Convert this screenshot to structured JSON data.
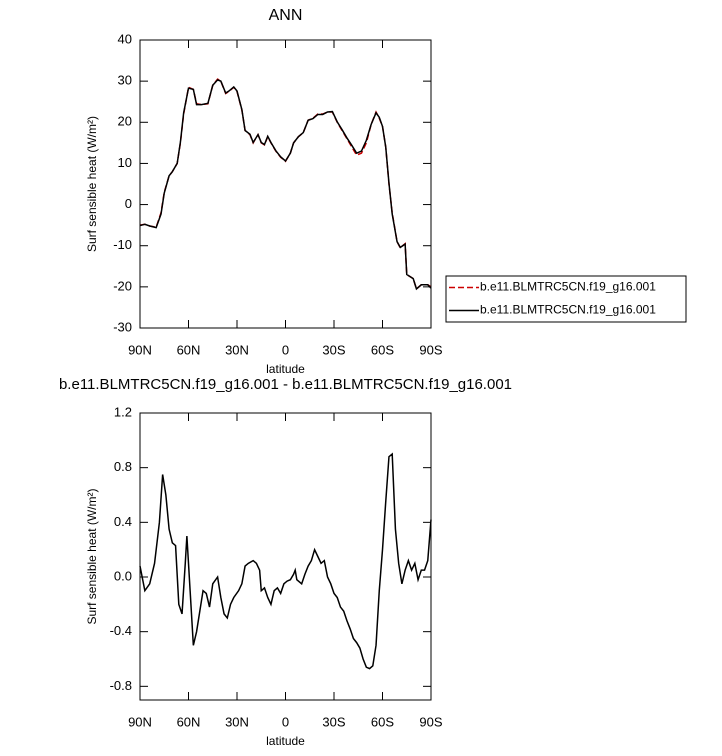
{
  "chart_data": [
    {
      "type": "line",
      "title": "ANN",
      "x_label": "latitude",
      "y_label": "Surf sensible heat (W/m²)",
      "x": [
        90,
        87,
        84,
        80,
        77,
        75,
        72,
        70,
        67,
        65,
        63,
        60,
        57,
        55,
        52,
        48,
        45,
        42,
        40,
        37,
        35,
        32,
        30,
        27,
        25,
        22,
        20,
        17,
        15,
        13,
        11,
        9,
        6,
        3,
        0,
        -3,
        -5,
        -8,
        -11,
        -14,
        -17,
        -20,
        -23,
        -26,
        -29,
        -32,
        -35,
        -38,
        -41,
        -44,
        -47,
        -50,
        -53,
        -56,
        -58,
        -60,
        -62,
        -64,
        -66,
        -69,
        -71,
        -74,
        -75,
        -79,
        -81,
        -84,
        -88,
        -90
      ],
      "series": [
        {
          "name": "b.e11.BLMTRC5CN.f19_g16.001",
          "color": "#cc0000",
          "line_style": "dashed",
          "values": [
            -5,
            -4.8,
            -5.2,
            -5.5,
            -2,
            3,
            7,
            8,
            10,
            15,
            22,
            28.5,
            28,
            24.5,
            24.3,
            24.5,
            29,
            30.5,
            30,
            27,
            27.5,
            28.5,
            27.5,
            23,
            18,
            17,
            15,
            17,
            15,
            14.5,
            16.5,
            15,
            13,
            11.5,
            10.5,
            12.5,
            15,
            16.5,
            17.5,
            20.5,
            21,
            22,
            22,
            22.5,
            22.5,
            20,
            18,
            16,
            14,
            12,
            12.5,
            15,
            19.5,
            22.5,
            21,
            19,
            14,
            5,
            -2,
            -9,
            -10.5,
            -9.5,
            -17,
            -18,
            -20.5,
            -19.5,
            -19.5,
            -20
          ]
        },
        {
          "name": "b.e11.BLMTRC5CN.f19_g16.001",
          "color": "#000000",
          "line_style": "solid",
          "values": [
            -5.1,
            -4.8,
            -5.2,
            -5.6,
            -2.3,
            2.8,
            7,
            8,
            10,
            15.2,
            22.3,
            28.3,
            28,
            24.3,
            24.3,
            24.6,
            29,
            30.3,
            30,
            27.1,
            27.6,
            28.6,
            27.6,
            23.1,
            18,
            17.1,
            15.1,
            17,
            15.1,
            14.6,
            16.6,
            15.1,
            13.1,
            11.6,
            10.6,
            12.5,
            15,
            16.5,
            17.5,
            20.5,
            20.9,
            21.9,
            21.9,
            22.5,
            22.6,
            20.1,
            18.2,
            16.2,
            14.4,
            12.5,
            13,
            15.6,
            19.5,
            22.3,
            21.2,
            19,
            14,
            5.2,
            -2.3,
            -9,
            -10.4,
            -9.6,
            -17,
            -18,
            -20.5,
            -19.5,
            -19.5,
            -20.3
          ]
        }
      ],
      "xlim": [
        90,
        -90
      ],
      "xticks": [
        {
          "value": 90,
          "label": "90N"
        },
        {
          "value": 60,
          "label": "60N"
        },
        {
          "value": 30,
          "label": "30N"
        },
        0,
        {
          "value": -30,
          "label": "30S"
        },
        {
          "value": -60,
          "label": "60S"
        },
        {
          "value": -90,
          "label": "90S"
        }
      ],
      "ylim": [
        -30,
        40
      ],
      "yticks": [
        -30,
        -20,
        -10,
        0,
        10,
        20,
        30,
        40
      ],
      "legend": "right"
    },
    {
      "type": "line",
      "title": "b.e11.BLMTRC5CN.f19_g16.001 - b.e11.BLMTRC5CN.f19_g16.001",
      "x_label": "latitude",
      "y_label": "Surf sensible heat (W/m²)",
      "x": [
        90,
        87,
        84,
        81,
        78,
        76,
        74,
        72,
        70,
        68,
        66,
        64,
        62,
        61,
        59,
        57,
        55,
        53,
        51,
        49,
        47,
        45,
        42,
        40,
        38,
        36,
        34,
        32,
        29,
        27,
        25,
        23,
        20,
        18,
        16,
        15,
        13,
        11,
        9,
        7,
        5,
        3,
        1,
        -1,
        -3,
        -5,
        -6,
        -7,
        -10,
        -12,
        -14,
        -16,
        -18,
        -20,
        -22,
        -24,
        -26,
        -28,
        -30,
        -32,
        -34,
        -36,
        -38,
        -40,
        -42,
        -44,
        -46,
        -48,
        -50,
        -52,
        -54,
        -56,
        -58,
        -60,
        -62,
        -64,
        -66,
        -68,
        -70,
        -72,
        -74,
        -76,
        -78,
        -80,
        -82,
        -84,
        -86,
        -88,
        -90
      ],
      "series": [
        {
          "color": "#000000",
          "line_style": "solid",
          "values": [
            0.08,
            -0.1,
            -0.05,
            0.1,
            0.4,
            0.75,
            0.6,
            0.35,
            0.25,
            0.23,
            -0.2,
            -0.27,
            0.1,
            0.3,
            -0.1,
            -0.5,
            -0.4,
            -0.25,
            -0.1,
            -0.12,
            -0.22,
            -0.05,
            0,
            -0.15,
            -0.27,
            -0.3,
            -0.2,
            -0.15,
            -0.1,
            -0.05,
            0.08,
            0.1,
            0.12,
            0.1,
            0.05,
            -0.1,
            -0.08,
            -0.15,
            -0.2,
            -0.1,
            -0.08,
            -0.12,
            -0.05,
            -0.03,
            -0.02,
            0.02,
            0.05,
            -0.02,
            -0.05,
            0.02,
            0.08,
            0.12,
            0.2,
            0.15,
            0.1,
            0.12,
            0,
            -0.05,
            -0.12,
            -0.15,
            -0.22,
            -0.25,
            -0.32,
            -0.38,
            -0.45,
            -0.48,
            -0.52,
            -0.6,
            -0.66,
            -0.67,
            -0.65,
            -0.5,
            -0.1,
            0.2,
            0.55,
            0.88,
            0.9,
            0.35,
            0.1,
            -0.05,
            0.05,
            0.12,
            0.05,
            0.1,
            -0.02,
            0.05,
            0.05,
            0.12,
            0.42
          ]
        }
      ],
      "xlim": [
        90,
        -90
      ],
      "xticks": [
        {
          "value": 90,
          "label": "90N"
        },
        {
          "value": 60,
          "label": "60N"
        },
        {
          "value": 30,
          "label": "30N"
        },
        0,
        {
          "value": -30,
          "label": "30S"
        },
        {
          "value": -60,
          "label": "60S"
        },
        {
          "value": -90,
          "label": "90S"
        }
      ],
      "ylim": [
        -0.9,
        1.2
      ],
      "yticks": [
        -0.8,
        -0.4,
        {
          "value": 0,
          "label": "0.0"
        },
        0.4,
        0.8,
        1.2
      ]
    }
  ]
}
